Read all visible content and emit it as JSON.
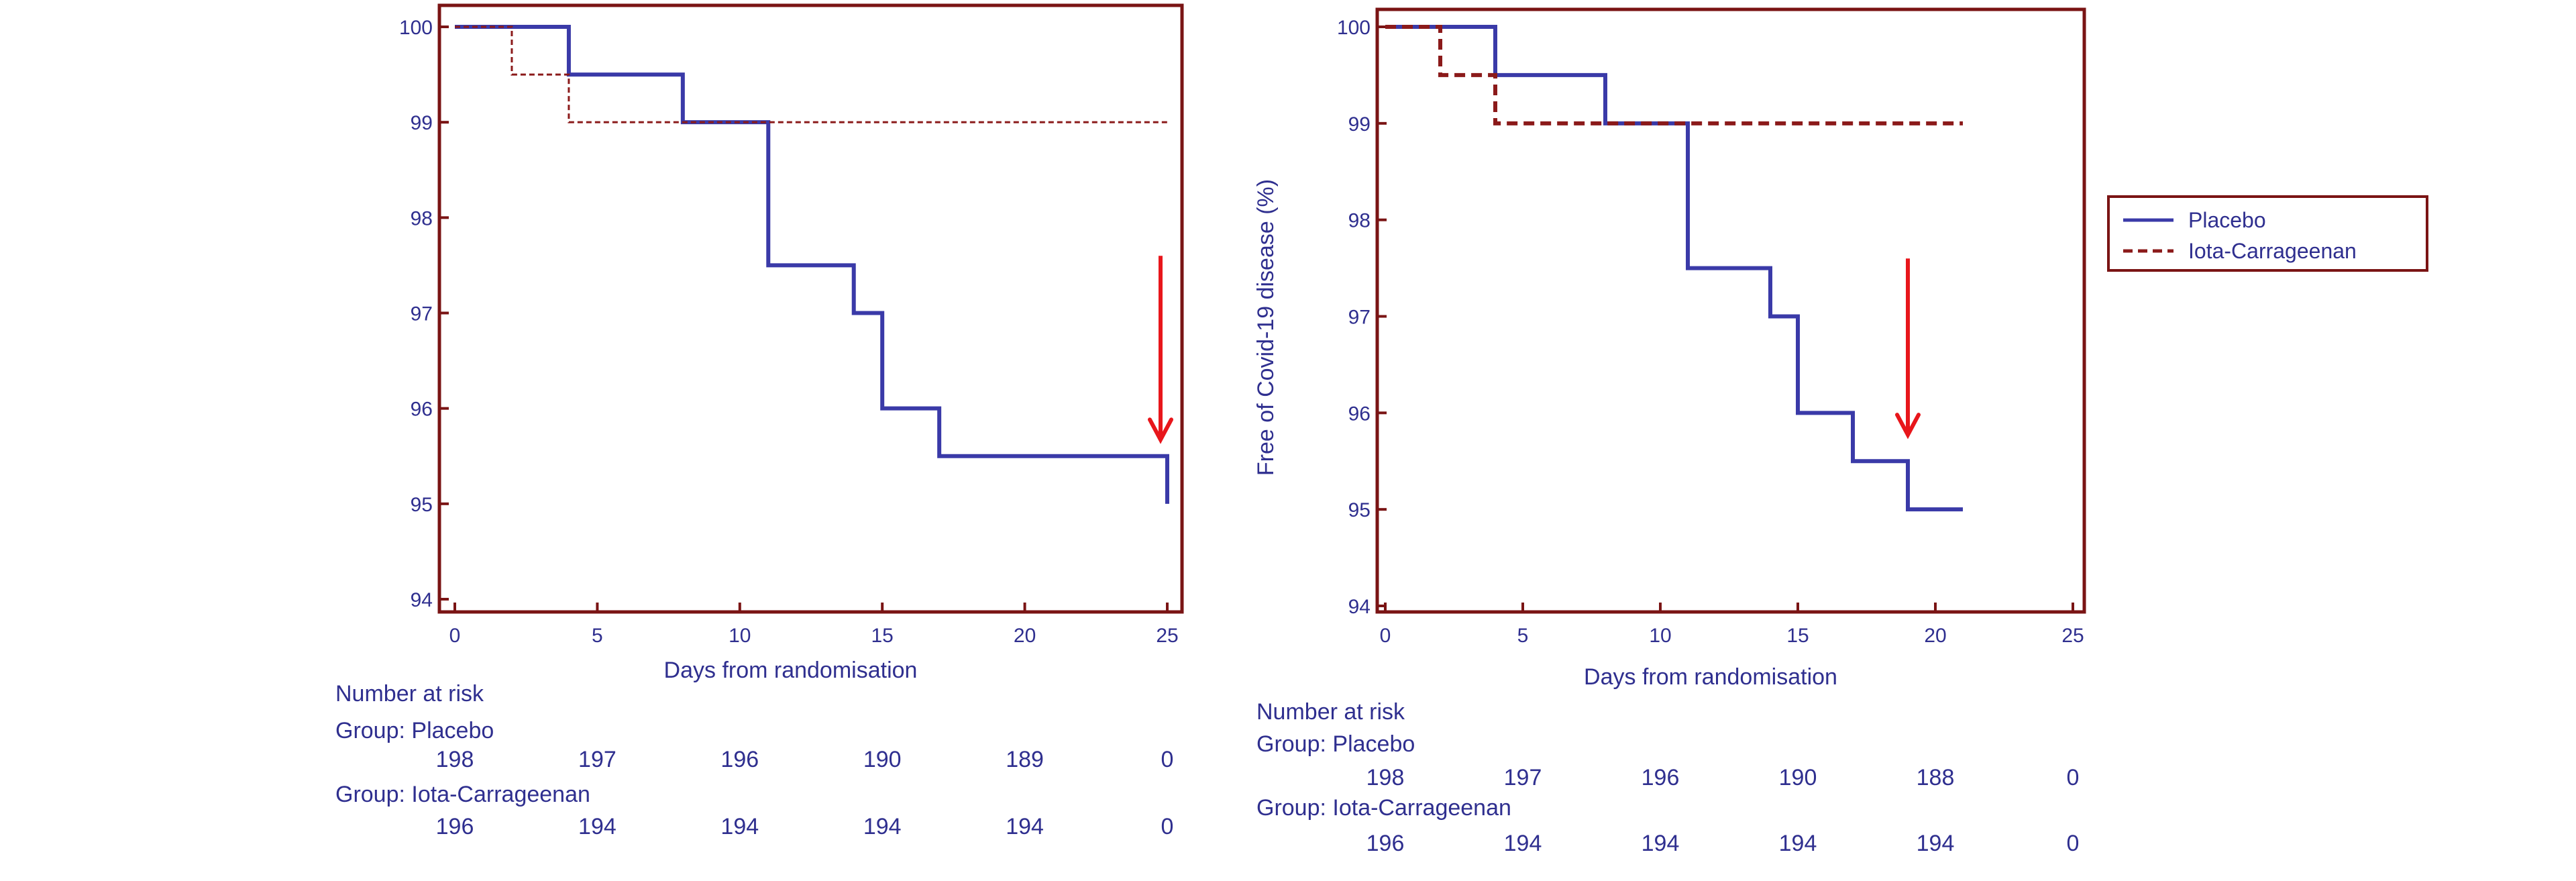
{
  "chart_data": [
    {
      "type": "line",
      "xlabel": "Days from randomisation",
      "ylabel": "",
      "xlim": [
        0,
        25
      ],
      "ylim": [
        94,
        100
      ],
      "x_ticks": [
        "0",
        "5",
        "10",
        "15",
        "20",
        "25"
      ],
      "y_ticks": [
        "94",
        "95",
        "96",
        "97",
        "98",
        "99",
        "100"
      ],
      "series": [
        {
          "name": "Placebo",
          "color": "#3a3aa8",
          "style": "solid-step",
          "x": [
            0,
            4,
            8,
            11,
            14,
            15,
            17,
            25,
            25
          ],
          "y": [
            100,
            99.5,
            99,
            97.5,
            97,
            96,
            95.5,
            95.5,
            95
          ]
        },
        {
          "name": "Iota-Carrageenan",
          "color": "#8b1a1a",
          "style": "dashed-step",
          "x": [
            0,
            2,
            4,
            25
          ],
          "y": [
            100,
            99.5,
            99,
            99
          ]
        }
      ],
      "annotation_arrow": {
        "x": 25,
        "y_from": 97.6,
        "y_to": 95.7,
        "color": "#e8161b"
      },
      "risk_table": {
        "title": "Number at risk",
        "groups": [
          {
            "label": "Group: Placebo",
            "values": [
              "198",
              "197",
              "196",
              "190",
              "189",
              "0"
            ]
          },
          {
            "label": "Group: Iota-Carrageenan",
            "values": [
              "196",
              "194",
              "194",
              "194",
              "194",
              "0"
            ]
          }
        ]
      }
    },
    {
      "type": "line",
      "xlabel": "Days from randomisation",
      "ylabel": "Free of Covid-19 disease (%)",
      "xlim": [
        0,
        25
      ],
      "ylim": [
        94,
        100
      ],
      "x_ticks": [
        "0",
        "5",
        "10",
        "15",
        "20",
        "25"
      ],
      "y_ticks": [
        "94",
        "95",
        "96",
        "97",
        "98",
        "99",
        "100"
      ],
      "series": [
        {
          "name": "Placebo",
          "color": "#3a3aa8",
          "style": "solid-step",
          "x": [
            0,
            4,
            8,
            11,
            14,
            15,
            17,
            19,
            21
          ],
          "y": [
            100,
            99.5,
            99,
            97.5,
            97,
            96,
            95.5,
            95,
            95
          ]
        },
        {
          "name": "Iota-Carrageenan",
          "color": "#8b1a1a",
          "style": "dashed-step",
          "x": [
            0,
            2,
            4,
            21
          ],
          "y": [
            100,
            99.5,
            99,
            99
          ]
        }
      ],
      "annotation_arrow": {
        "x": 19,
        "y_from": 97.6,
        "y_to": 95.8,
        "color": "#e8161b"
      },
      "legend": {
        "position": "right",
        "entries": [
          {
            "label": "Placebo",
            "color": "#3a3aa8",
            "style": "solid"
          },
          {
            "label": "Iota-Carrageenan",
            "color": "#8b1a1a",
            "style": "dashed"
          }
        ]
      },
      "risk_table": {
        "title": "Number at risk",
        "groups": [
          {
            "label": "Group: Placebo",
            "values": [
              "198",
              "197",
              "196",
              "190",
              "188",
              "0"
            ]
          },
          {
            "label": "Group: Iota-Carrageenan",
            "values": [
              "196",
              "194",
              "194",
              "194",
              "194",
              "0"
            ]
          }
        ]
      }
    }
  ]
}
